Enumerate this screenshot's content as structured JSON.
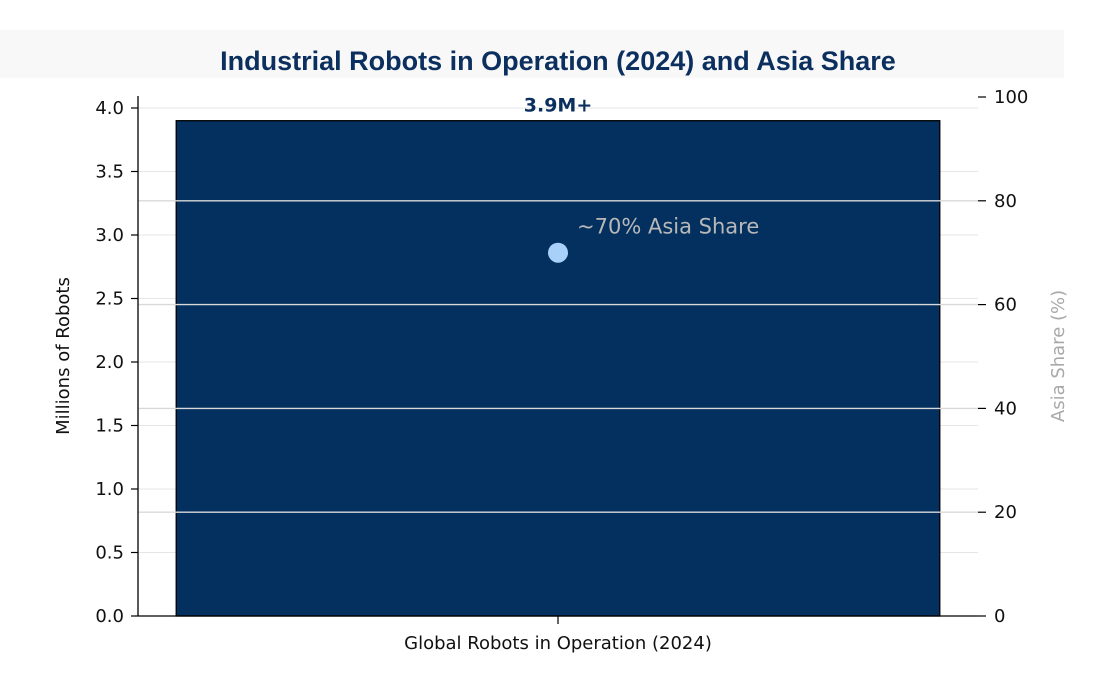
{
  "chart_data": {
    "type": "bar",
    "title": "Industrial Robots in Operation (2024) and Asia Share",
    "categories": [
      "Global Robots in Operation (2024)"
    ],
    "series": [
      {
        "values": [
          3.9
        ],
        "axis": "left",
        "color": "#03305f"
      },
      {
        "values": [
          70
        ],
        "axis": "right",
        "kind": "point",
        "color": "#a8d0f8"
      }
    ],
    "bar_label": "3.9M+",
    "annotation": "~70% Asia Share",
    "ylabel": "Millions of Robots",
    "ylabel_right": "Asia Share (%)",
    "ylim": [
      0,
      4.0
    ],
    "ylim_right": [
      0,
      100
    ],
    "yticks": [
      "0.0",
      "0.5",
      "1.0",
      "1.5",
      "2.0",
      "2.5",
      "3.0",
      "3.5",
      "4.0"
    ],
    "yticks_right": [
      "0",
      "20",
      "40",
      "60",
      "80",
      "100"
    ],
    "grid": true,
    "colors": {
      "title": "#0b2f5e",
      "bar": "#03305f",
      "point": "#a8d0f8",
      "annotation": "#b8b8b8"
    }
  }
}
